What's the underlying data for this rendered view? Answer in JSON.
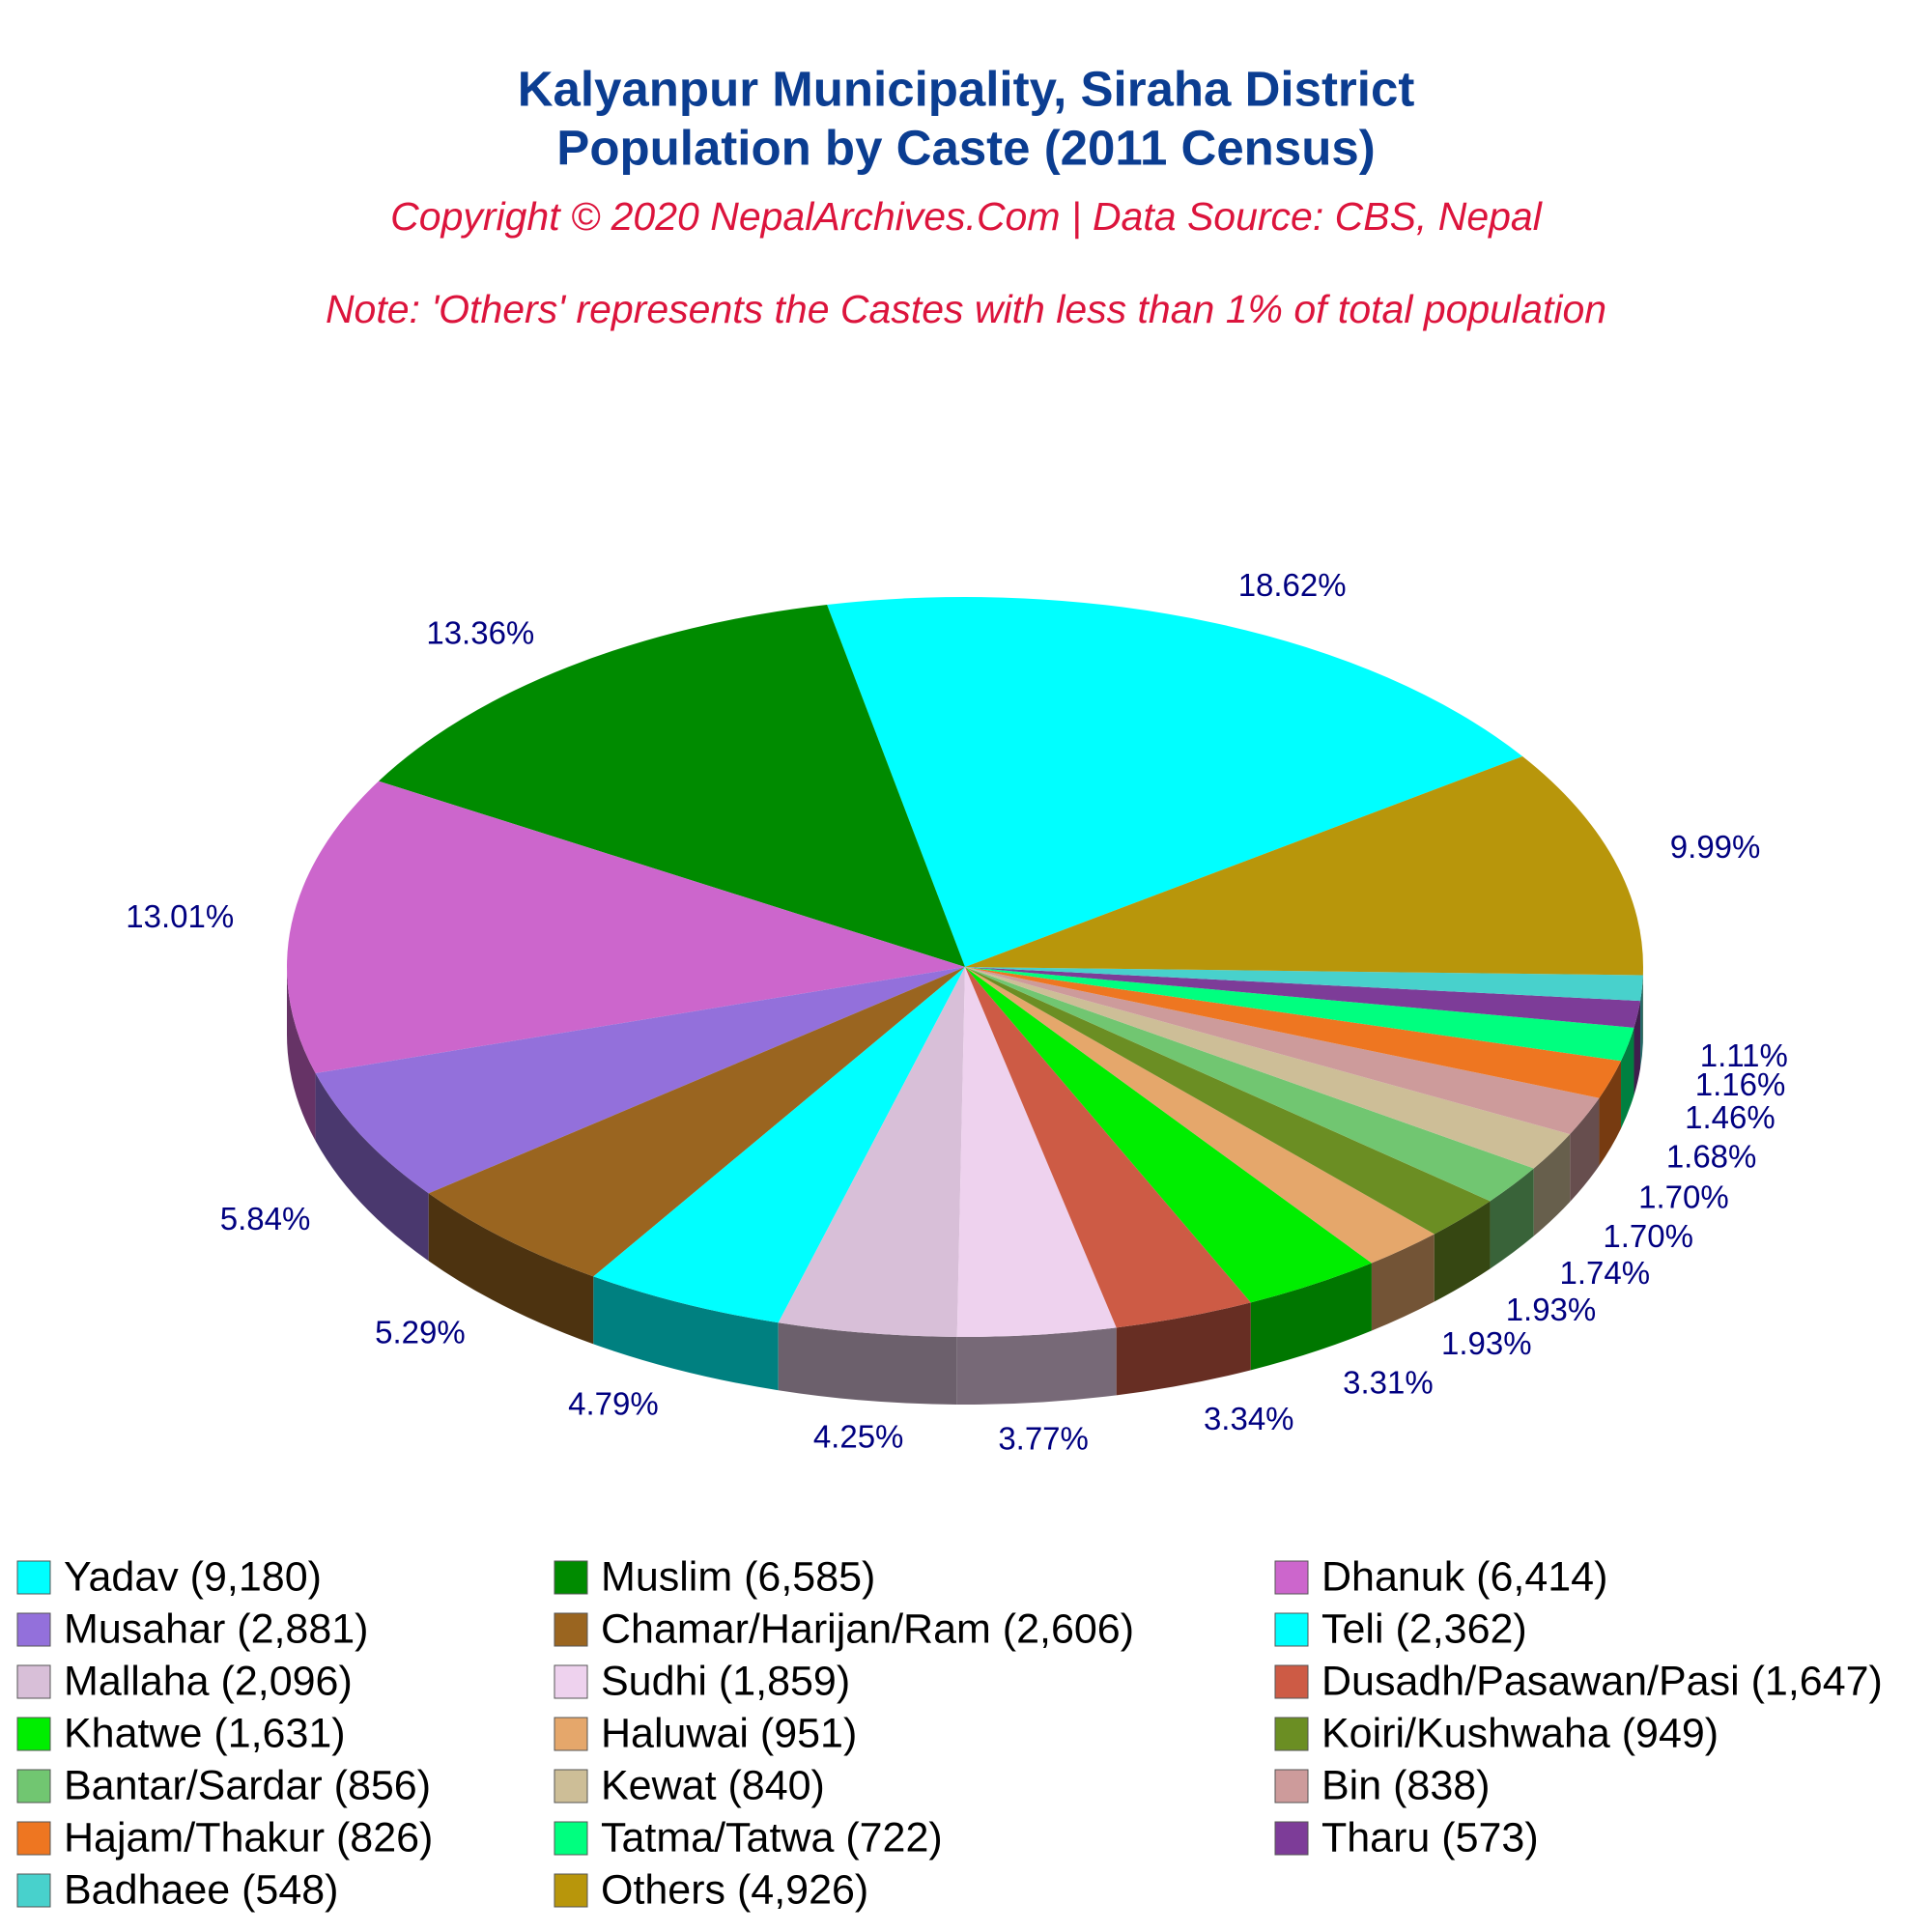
{
  "chart_data": {
    "type": "pie",
    "title": [
      "Kalyanpur Municipality, Siraha District",
      "Population by Caste (2011 Census)"
    ],
    "subtitle": "Copyright © 2020 NepalArchives.Com | Data Source: CBS, Nepal",
    "note": "Note: 'Others' represents the Castes with less than 1% of total population",
    "categories": [
      "Yadav (9,180)",
      "Muslim (6,585)",
      "Dhanuk (6,414)",
      "Musahar (2,881)",
      "Chamar/Harijan/Ram (2,606)",
      "Teli (2,362)",
      "Mallaha (2,096)",
      "Sudhi (1,859)",
      "Dusadh/Pasawan/Pasi (1,647)",
      "Khatwe (1,631)",
      "Haluwai (951)",
      "Koiri/Kushwaha (949)",
      "Bantar/Sardar (856)",
      "Kewat (840)",
      "Bin (838)",
      "Hajam/Thakur (826)",
      "Tatma/Tatwa (722)",
      "Tharu (573)",
      "Badhaee (548)",
      "Others (4,926)"
    ],
    "values": [
      18.62,
      13.36,
      13.01,
      5.84,
      5.29,
      4.79,
      4.25,
      3.77,
      3.34,
      3.31,
      1.93,
      1.93,
      1.74,
      1.7,
      1.7,
      1.68,
      1.46,
      1.16,
      1.11,
      9.99
    ],
    "value_labels": [
      "18.62%",
      "13.36%",
      "13.01%",
      "5.84%",
      "5.29%",
      "4.79%",
      "4.25%",
      "3.77%",
      "3.34%",
      "3.31%",
      "1.93%",
      "1.93%",
      "1.74%",
      "1.70%",
      "1.70%",
      "1.68%",
      "1.46%",
      "1.16%",
      "1.11%",
      "9.99%"
    ],
    "colors": [
      "#00FFFF",
      "#008B00",
      "#CC66CC",
      "#9370DB",
      "#9A6520",
      "#00FFFF",
      "#D8BFD8",
      "#EED2EE",
      "#CD5B45",
      "#00EE00",
      "#E5A76B",
      "#6B8E23",
      "#71C671",
      "#CDBE97",
      "#CD9B9B",
      "#EE7621",
      "#00FF7F",
      "#7D3C98",
      "#48D1CC",
      "#B8960B"
    ],
    "legend": "bottom"
  }
}
